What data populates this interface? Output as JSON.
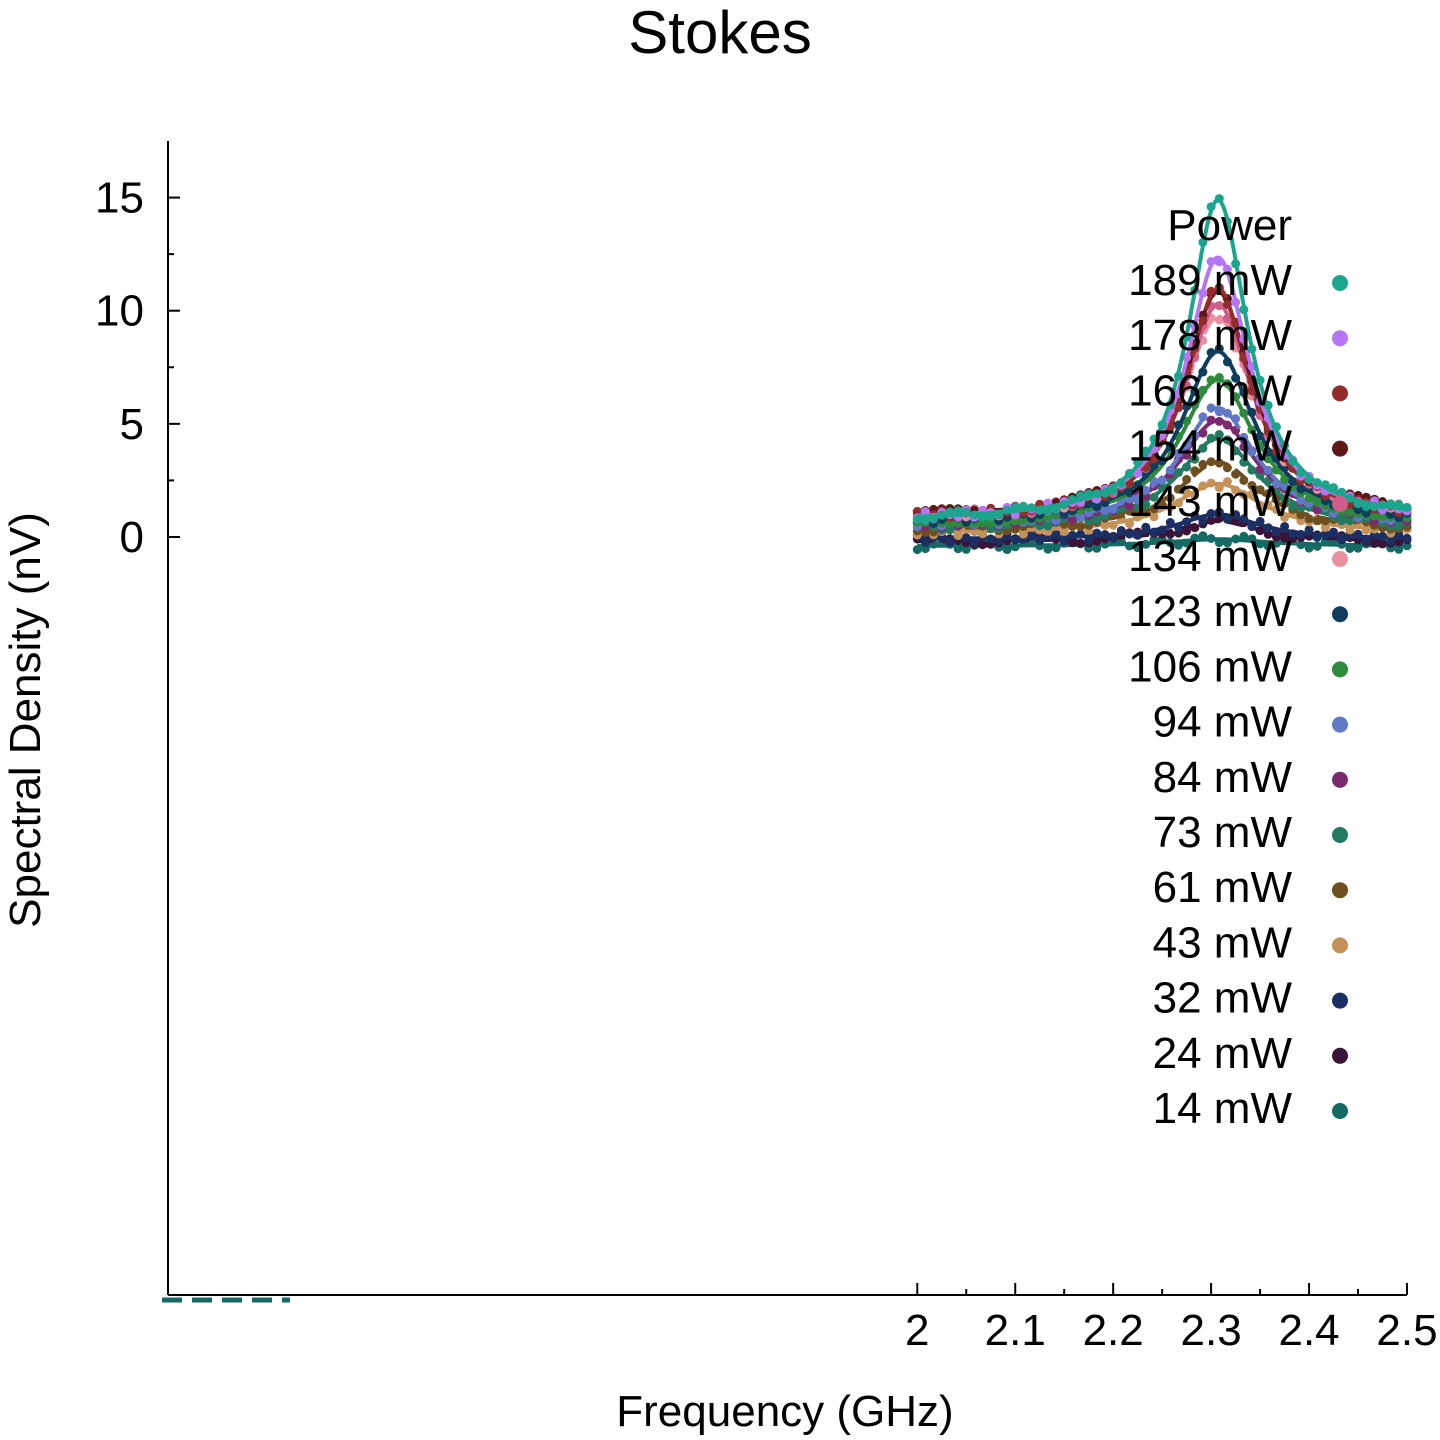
{
  "chart_data": {
    "type": "scatter",
    "title": "Stokes",
    "xlabel": "Frequency (GHz)",
    "ylabel": "Spectral Density (nV)",
    "xlim": [
      1.235,
      2.5
    ],
    "ylim": [
      -33.5,
      17.5
    ],
    "x_ticks": [
      "2",
      "2.1",
      "2.2",
      "2.3",
      "2.4",
      "2.5"
    ],
    "y_ticks": [
      "0",
      "5",
      "10",
      "15"
    ],
    "x_data_range": [
      2.0,
      2.5
    ],
    "center_frequency": 2.307,
    "legend_title": "Power",
    "legend_position": "top-right",
    "series": [
      {
        "name": "189 mW",
        "color": "#1ba58d",
        "peak": 14.2,
        "baseline": 0.7,
        "fwhm": 0.075
      },
      {
        "name": "178 mW",
        "color": "#b575f5",
        "peak": 11.6,
        "baseline": 0.75,
        "fwhm": 0.08
      },
      {
        "name": "166 mW",
        "color": "#942c2c",
        "peak": 10.2,
        "baseline": 0.8,
        "fwhm": 0.08
      },
      {
        "name": "154 mW",
        "color": "#5e1717",
        "peak": 10.0,
        "baseline": 0.85,
        "fwhm": 0.085
      },
      {
        "name": "143 mW",
        "color": "#d05c8a",
        "peak": 9.5,
        "baseline": 0.8,
        "fwhm": 0.085
      },
      {
        "name": "134 mW",
        "color": "#e8909e",
        "peak": 9.0,
        "baseline": 0.75,
        "fwhm": 0.09
      },
      {
        "name": "123 mW",
        "color": "#0e3d5e",
        "peak": 7.6,
        "baseline": 0.6,
        "fwhm": 0.09
      },
      {
        "name": "106 mW",
        "color": "#2e8b3c",
        "peak": 6.4,
        "baseline": 0.55,
        "fwhm": 0.095
      },
      {
        "name": "94 mW",
        "color": "#6078c8",
        "peak": 5.2,
        "baseline": 0.5,
        "fwhm": 0.095
      },
      {
        "name": "84 mW",
        "color": "#7b2a6e",
        "peak": 4.7,
        "baseline": 0.45,
        "fwhm": 0.1
      },
      {
        "name": "73 mW",
        "color": "#237a63",
        "peak": 4.0,
        "baseline": 0.35,
        "fwhm": 0.1
      },
      {
        "name": "61 mW",
        "color": "#6e5020",
        "peak": 3.0,
        "baseline": 0.3,
        "fwhm": 0.1
      },
      {
        "name": "43 mW",
        "color": "#c49258",
        "peak": 2.2,
        "baseline": 0.15,
        "fwhm": 0.11
      },
      {
        "name": "32 mW",
        "color": "#1c2f63",
        "peak": 1.1,
        "baseline": -0.1,
        "fwhm": 0.1
      },
      {
        "name": "24 mW",
        "color": "#3a1338",
        "peak": 0.9,
        "baseline": -0.2,
        "fwhm": 0.1
      },
      {
        "name": "14 mW",
        "color": "#166a66",
        "peak": 0.3,
        "baseline": -0.4,
        "fwhm": 0.12
      }
    ]
  }
}
